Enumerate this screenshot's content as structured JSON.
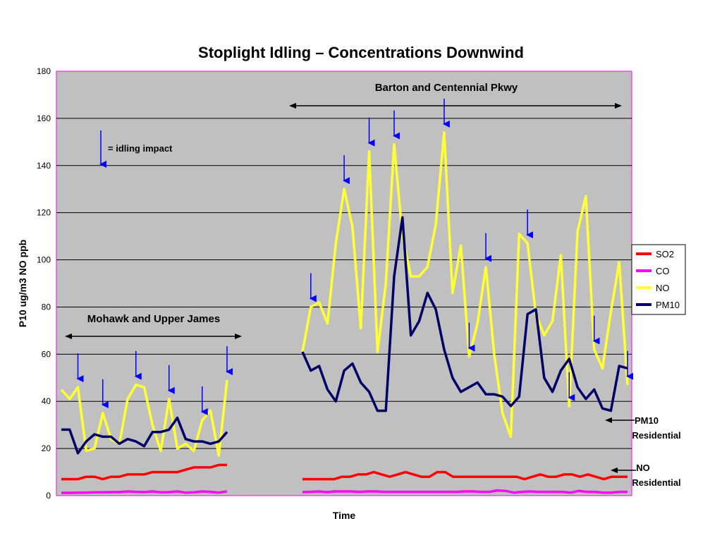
{
  "chart_data": {
    "type": "line",
    "title": "Stoplight Idling – Concentrations Downwind",
    "xlabel": "Time",
    "ylabel": "P10 ug/m3  NO ppb",
    "ylim": [
      0,
      180
    ],
    "yticks": [
      0,
      20,
      40,
      60,
      80,
      100,
      120,
      140,
      160,
      180
    ],
    "grid": true,
    "legend_position": "right",
    "series": [
      {
        "name": "SO2",
        "color": "#ff0000",
        "segments": [
          [
            7,
            7,
            7,
            8,
            8,
            7,
            8,
            8,
            9,
            9,
            9,
            10,
            10,
            10,
            10,
            11,
            12,
            12,
            12,
            13,
            13
          ],
          [
            7,
            7,
            7,
            7,
            7,
            8,
            8,
            9,
            9,
            10,
            9,
            8,
            9,
            10,
            9,
            8,
            8,
            10,
            10,
            8,
            8,
            8,
            8,
            8,
            8,
            8,
            8,
            8,
            7,
            8,
            9,
            8,
            8,
            9,
            9,
            8,
            9,
            8,
            7,
            8,
            8,
            8
          ]
        ]
      },
      {
        "name": "CO",
        "color": "#ff00ff",
        "segments": [
          [
            1.2,
            1.2,
            1.3,
            1.3,
            1.4,
            1.4,
            1.5,
            1.5,
            1.8,
            1.6,
            1.5,
            1.8,
            1.4,
            1.5,
            1.8,
            1.3,
            1.4,
            1.8,
            1.6,
            1.3,
            1.8
          ],
          [
            1.5,
            1.6,
            1.8,
            1.5,
            1.8,
            1.8,
            1.8,
            1.6,
            1.8,
            1.8,
            1.6,
            1.6,
            1.6,
            1.6,
            1.6,
            1.6,
            1.6,
            1.6,
            1.6,
            1.6,
            1.8,
            1.8,
            1.6,
            1.6,
            2.2,
            2.0,
            1.3,
            1.6,
            1.8,
            1.6,
            1.6,
            1.6,
            1.6,
            1.3,
            2.0,
            1.6,
            1.6,
            1.3,
            1.3,
            1.6,
            1.6
          ]
        ]
      },
      {
        "name": "NO",
        "color": "#ffff33",
        "segments": [
          [
            45,
            41,
            46,
            19,
            20,
            35,
            24,
            22,
            41,
            47,
            46,
            30,
            19,
            41,
            20,
            22,
            19,
            32,
            36,
            17,
            49
          ],
          [
            61,
            80,
            82,
            73,
            107,
            130,
            114,
            71,
            146,
            61,
            90,
            149,
            110,
            93,
            93,
            97,
            115,
            154,
            86,
            106,
            59,
            73,
            97,
            60,
            35,
            25,
            111,
            107,
            77,
            68,
            74,
            102,
            38,
            112,
            127,
            62,
            54,
            78,
            99,
            47
          ]
        ]
      },
      {
        "name": "PM10",
        "color": "#000066",
        "segments": [
          [
            28,
            28,
            18,
            23,
            26,
            25,
            25,
            22,
            24,
            23,
            21,
            27,
            27,
            28,
            33,
            24,
            23,
            23,
            22,
            23,
            27
          ],
          [
            61,
            53,
            55,
            45,
            40,
            53,
            56,
            48,
            44,
            36,
            36,
            93,
            118,
            68,
            74,
            86,
            79,
            62,
            50,
            44,
            46,
            48,
            43,
            43,
            42,
            38,
            42,
            77,
            79,
            50,
            44,
            53,
            58,
            46,
            41,
            45,
            37,
            36,
            55,
            54
          ]
        ]
      }
    ],
    "annotations": {
      "barton_label": "Barton and Centennial Pkwy",
      "mohawk_label": "Mohawk and Upper James",
      "idling_legend": "= idling impact",
      "pm10_residential": [
        "PM10",
        "Residential"
      ],
      "no_residential": [
        "NO",
        "Residential"
      ],
      "idling_arrows_left": [
        2,
        5,
        9,
        13,
        17,
        20
      ],
      "idling_arrows_right": [
        1,
        5,
        8,
        11,
        17,
        20,
        22,
        27,
        32,
        35,
        39
      ]
    }
  }
}
